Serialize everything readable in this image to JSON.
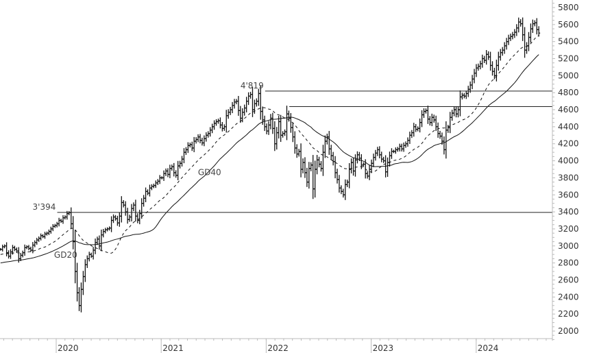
{
  "chart_data": {
    "type": "line",
    "title": "",
    "subtitle": "",
    "xlabel": "",
    "ylabel": "",
    "ylim": [
      1900,
      5850
    ],
    "yticks": [
      2000,
      2200,
      2400,
      2600,
      2800,
      3000,
      3200,
      3400,
      3600,
      3800,
      4000,
      4200,
      4400,
      4600,
      4800,
      5000,
      5200,
      5400,
      5600,
      5800
    ],
    "xticks": [
      {
        "label": "2020",
        "t": 2020.0
      },
      {
        "label": "2021",
        "t": 2021.0
      },
      {
        "label": "2022",
        "t": 2022.0
      },
      {
        "label": "2023",
        "t": 2023.0
      },
      {
        "label": "2024",
        "t": 2024.0
      }
    ],
    "grid": false,
    "legend": null,
    "x_range": [
      2019.46,
      2024.62
    ],
    "series": [
      {
        "name": "Price (weekly OHLC bars)",
        "style": "bar",
        "t_start": 2019.47,
        "t_step": 0.0192,
        "close": [
          2960,
          2990,
          3000,
          2920,
          2880,
          2930,
          2980,
          2960,
          2940,
          2850,
          2890,
          2920,
          2980,
          2990,
          2970,
          2950,
          3010,
          3040,
          3070,
          3090,
          3120,
          3110,
          3140,
          3150,
          3170,
          3200,
          3230,
          3240,
          3260,
          3300,
          3290,
          3330,
          3340,
          3380,
          3390,
          3260,
          3050,
          2700,
          2450,
          2300,
          2490,
          2640,
          2780,
          2850,
          2900,
          2880,
          2950,
          3040,
          3080,
          3000,
          3130,
          3170,
          3190,
          3200,
          3210,
          3300,
          3340,
          3320,
          3270,
          3350,
          3510,
          3480,
          3400,
          3310,
          3340,
          3440,
          3480,
          3350,
          3300,
          3380,
          3500,
          3560,
          3640,
          3620,
          3680,
          3700,
          3710,
          3740,
          3760,
          3800,
          3800,
          3850,
          3880,
          3840,
          3910,
          3930,
          3860,
          3830,
          3940,
          3970,
          4020,
          4100,
          4130,
          4180,
          4190,
          4150,
          4230,
          4250,
          4280,
          4240,
          4210,
          4260,
          4300,
          4320,
          4360,
          4400,
          4440,
          4460,
          4470,
          4420,
          4380,
          4400,
          4530,
          4570,
          4600,
          4650,
          4690,
          4700,
          4590,
          4500,
          4570,
          4620,
          4700,
          4760,
          4780,
          4600,
          4670,
          4700,
          4790,
          4580,
          4480,
          4400,
          4350,
          4420,
          4500,
          4380,
          4200,
          4330,
          4460,
          4300,
          4320,
          4340,
          4550,
          4500,
          4390,
          4280,
          4150,
          4080,
          4110,
          3900,
          3980,
          3860,
          3750,
          3910,
          3950,
          3670,
          3900,
          4010,
          3960,
          3910,
          4100,
          4230,
          4280,
          4140,
          4060,
          3990,
          3860,
          3780,
          3680,
          3640,
          3600,
          3720,
          3750,
          3900,
          3980,
          3880,
          4010,
          4070,
          4030,
          3950,
          3960,
          3850,
          3820,
          3900,
          3970,
          4040,
          4090,
          4130,
          4070,
          4020,
          4000,
          3870,
          3980,
          4060,
          4110,
          4110,
          4130,
          4140,
          4170,
          4140,
          4180,
          4200,
          4240,
          4300,
          4330,
          4400,
          4370,
          4380,
          4450,
          4540,
          4580,
          4590,
          4490,
          4450,
          4510,
          4480,
          4400,
          4320,
          4290,
          4230,
          4130,
          4360,
          4390,
          4510,
          4560,
          4600,
          4550,
          4600,
          4750,
          4770,
          4760,
          4790,
          4840,
          4890,
          4960,
          5030,
          5090,
          5110,
          5140,
          5200,
          5180,
          5250,
          5220,
          5120,
          5050,
          5000,
          5120,
          5220,
          5270,
          5300,
          5350,
          5400,
          5440,
          5460,
          5480,
          5510,
          5560,
          5630,
          5610,
          5480,
          5300,
          5350,
          5450,
          5550,
          5610,
          5620,
          5540,
          5500
        ]
      },
      {
        "name": "GD20",
        "style": "dashed",
        "label_pos": {
          "t": 2019.98,
          "v": 2860
        }
      },
      {
        "name": "GD40",
        "style": "solid",
        "label_pos": {
          "t": 2021.35,
          "v": 3830
        }
      }
    ],
    "horizontal_lines": [
      {
        "value": 3394,
        "label": "3'394",
        "t_from": 2020.01,
        "t_to": 2024.62
      },
      {
        "value": 4819,
        "label": "4'819",
        "t_from": 2021.99,
        "t_to": 2024.62
      },
      {
        "value": 4637,
        "label": "",
        "t_from": 2022.22,
        "t_to": 2024.62
      }
    ],
    "annotations": [
      "3'394",
      "4'819",
      "GD20",
      "GD40"
    ]
  }
}
